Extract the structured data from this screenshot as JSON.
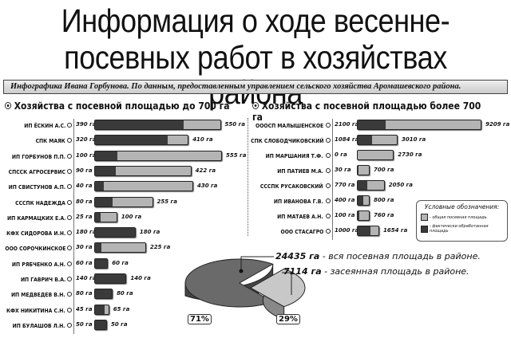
{
  "title_line1": "Информация о ходе весенне-",
  "title_line2": "посевных работ в хозяйствах района",
  "subtitle": "Инфографика Ивана Горбунова. По данным, предоставленным управлением сельского хозяйства Аромашевского района.",
  "colors": {
    "total": "#b4b4b4",
    "processed": "#3a3a3a"
  },
  "legend": {
    "title": "Условные обозначения:",
    "total": "- общая посевная площадь",
    "processed": "- фактически обработанная площадь"
  },
  "chart_data": [
    {
      "type": "bar",
      "title": "Хозяйства с посевной площадью до 700 га",
      "unit": "га",
      "categories": [
        "ИП ЁСКИН А.С.",
        "СПК МАЯК",
        "ИП ГОРБУНОВ П.П.",
        "СПССК АГРОСЕРВИС",
        "ИП СВИСТУНОВ А.П.",
        "СССПК НАДЕЖДА",
        "ИП КАРМАЦКИХ Е.А.",
        "КФХ СИДОРОВА И.Н.",
        "ООО СОРОЧКИНСКОЕ",
        "ИП РЯБЧЕНКО А.Н.",
        "ИП ГАВРИЧ В.А.",
        "ИП МЕДВЕДЕВ В.Н.",
        "КФХ НИКИТИНА С.Н.",
        "ИП БУЛАШОВ Л.Н."
      ],
      "series": [
        {
          "name": "фактически обработанная площадь",
          "values": [
            390,
            320,
            100,
            90,
            40,
            80,
            25,
            180,
            30,
            60,
            140,
            80,
            45,
            50
          ]
        },
        {
          "name": "общая посевная площадь",
          "values": [
            550,
            410,
            555,
            422,
            430,
            255,
            100,
            180,
            225,
            60,
            140,
            80,
            65,
            50
          ]
        }
      ]
    },
    {
      "type": "bar",
      "title": "Хозяйства с посевной площадью более 700 га",
      "unit": "га",
      "categories": [
        "ОООСП МАЛЫШЕНСКОЕ",
        "СПК СЛОБОДЧИКОВСКИЙ",
        "ИП МАРШАНИЯ Т.Ф.",
        "ИП ПАТИЕВ М.А.",
        "СССПК РУСАКОВСКИЙ",
        "ИП ИВАНОВА Г.В.",
        "ИП МАТАЕВ А.Н.",
        "ООО СТАСАГРО"
      ],
      "series": [
        {
          "name": "фактически обработанная площадь",
          "values": [
            2100,
            1084,
            0,
            30,
            770,
            400,
            100,
            1000
          ]
        },
        {
          "name": "общая посевная площадь",
          "values": [
            9209,
            3010,
            2730,
            700,
            2050,
            800,
            760,
            1654
          ]
        }
      ]
    },
    {
      "type": "pie",
      "values": [
        71,
        29
      ],
      "labels": [
        "71%",
        "29%"
      ],
      "annotations": [
        {
          "value": "24435 га",
          "text": " - вся посевная площадь в районе."
        },
        {
          "value": "7114 га",
          "text": " - засеянная площадь в районе."
        }
      ]
    }
  ]
}
